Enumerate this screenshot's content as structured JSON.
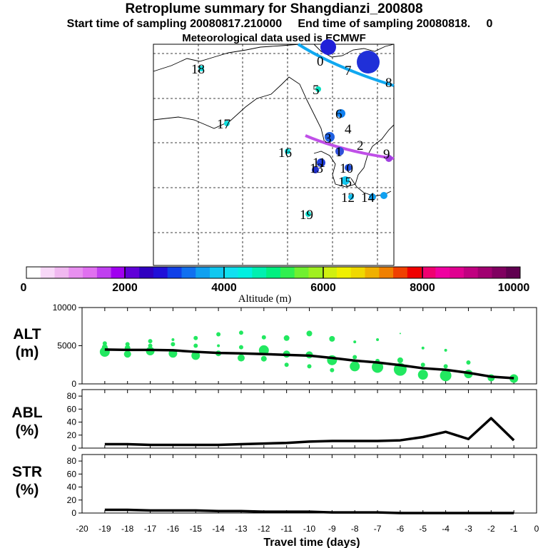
{
  "header": {
    "title": "Retroplume summary for Shangdianzi_200808",
    "subtitle": "Start time of sampling 20080817.210000     End time of sampling 20080818.     0",
    "met_line": "Meteorological data used is ECMWF"
  },
  "map": {
    "labels": [
      "18",
      "17",
      "16",
      "19",
      "5",
      "6",
      "4",
      "1",
      "2",
      "3",
      "10",
      "11",
      "12",
      "13",
      "14",
      "15",
      "9",
      "0",
      "7",
      "8"
    ]
  },
  "colorbar": {
    "title": "Altitude (m)",
    "ticks": [
      "0",
      "2000",
      "4000",
      "6000",
      "8000",
      "10000"
    ],
    "colors": [
      "#ffffff",
      "#f8d8f8",
      "#f0b8f0",
      "#e890f0",
      "#e070f0",
      "#c040f0",
      "#a000f0",
      "#6000d8",
      "#3000c0",
      "#2010d8",
      "#1040e8",
      "#1070f0",
      "#10a0f0",
      "#10c8f0",
      "#10e0f0",
      "#00f0e0",
      "#00f0b0",
      "#00f080",
      "#30f050",
      "#70f030",
      "#a0f020",
      "#d0f010",
      "#f0f000",
      "#f0d800",
      "#f0b000",
      "#f08000",
      "#f04000",
      "#f00000",
      "#f00070",
      "#f000a0",
      "#e00090",
      "#c00080",
      "#a00070",
      "#800060",
      "#600050"
    ]
  },
  "chart_data": [
    {
      "type": "line",
      "panel": "ALT",
      "ylabel": "ALT\n(m)",
      "ylim": [
        0,
        10000
      ],
      "yticks": [
        "0",
        "5000",
        "10000"
      ],
      "x": [
        -19,
        -18,
        -17,
        -16,
        -15,
        -14,
        -13,
        -12,
        -11,
        -10,
        -9,
        -8,
        -7,
        -6,
        -5,
        -4,
        -3,
        -2,
        -1
      ],
      "series": [
        {
          "name": "mean altitude",
          "values": [
            4500,
            4450,
            4450,
            4400,
            4200,
            4050,
            4000,
            3900,
            3800,
            3700,
            3400,
            3050,
            2800,
            2450,
            2050,
            1850,
            1450,
            950,
            750
          ]
        }
      ]
    },
    {
      "type": "line",
      "panel": "ABL",
      "ylabel": "ABL\n(%)",
      "ylim": [
        0,
        90
      ],
      "yticks": [
        "0",
        "20",
        "40",
        "60",
        "80"
      ],
      "x": [
        -19,
        -18,
        -17,
        -16,
        -15,
        -14,
        -13,
        -12,
        -11,
        -10,
        -9,
        -8,
        -7,
        -6,
        -5,
        -4,
        -3,
        -2,
        -1
      ],
      "series": [
        {
          "name": "ABL fraction",
          "values": [
            6,
            6,
            5,
            5,
            5,
            5,
            6,
            7,
            8,
            10,
            11,
            11,
            11,
            12,
            17,
            25,
            14,
            46,
            12
          ]
        }
      ]
    },
    {
      "type": "line",
      "panel": "STR",
      "ylabel": "STR\n(%)",
      "ylim": [
        0,
        90
      ],
      "yticks": [
        "0",
        "20",
        "40",
        "60",
        "80"
      ],
      "x": [
        -19,
        -18,
        -17,
        -16,
        -15,
        -14,
        -13,
        -12,
        -11,
        -10,
        -9,
        -8,
        -7,
        -6,
        -5,
        -4,
        -3,
        -2,
        -1
      ],
      "series": [
        {
          "name": "stratospheric fraction",
          "values": [
            5,
            5,
            4,
            4,
            4,
            3,
            3,
            2,
            2,
            2,
            1,
            1,
            1,
            0,
            0,
            0,
            0,
            0,
            0
          ]
        }
      ],
      "xlabel": "Travel time (days)",
      "xticks": [
        "-20",
        "-19",
        "-18",
        "-17",
        "-16",
        "-15",
        "-14",
        "-13",
        "-12",
        "-11",
        "-10",
        "-9",
        "-8",
        "-7",
        "-6",
        "-5",
        "-4",
        "-3",
        "-2",
        "-1",
        "0"
      ]
    }
  ]
}
